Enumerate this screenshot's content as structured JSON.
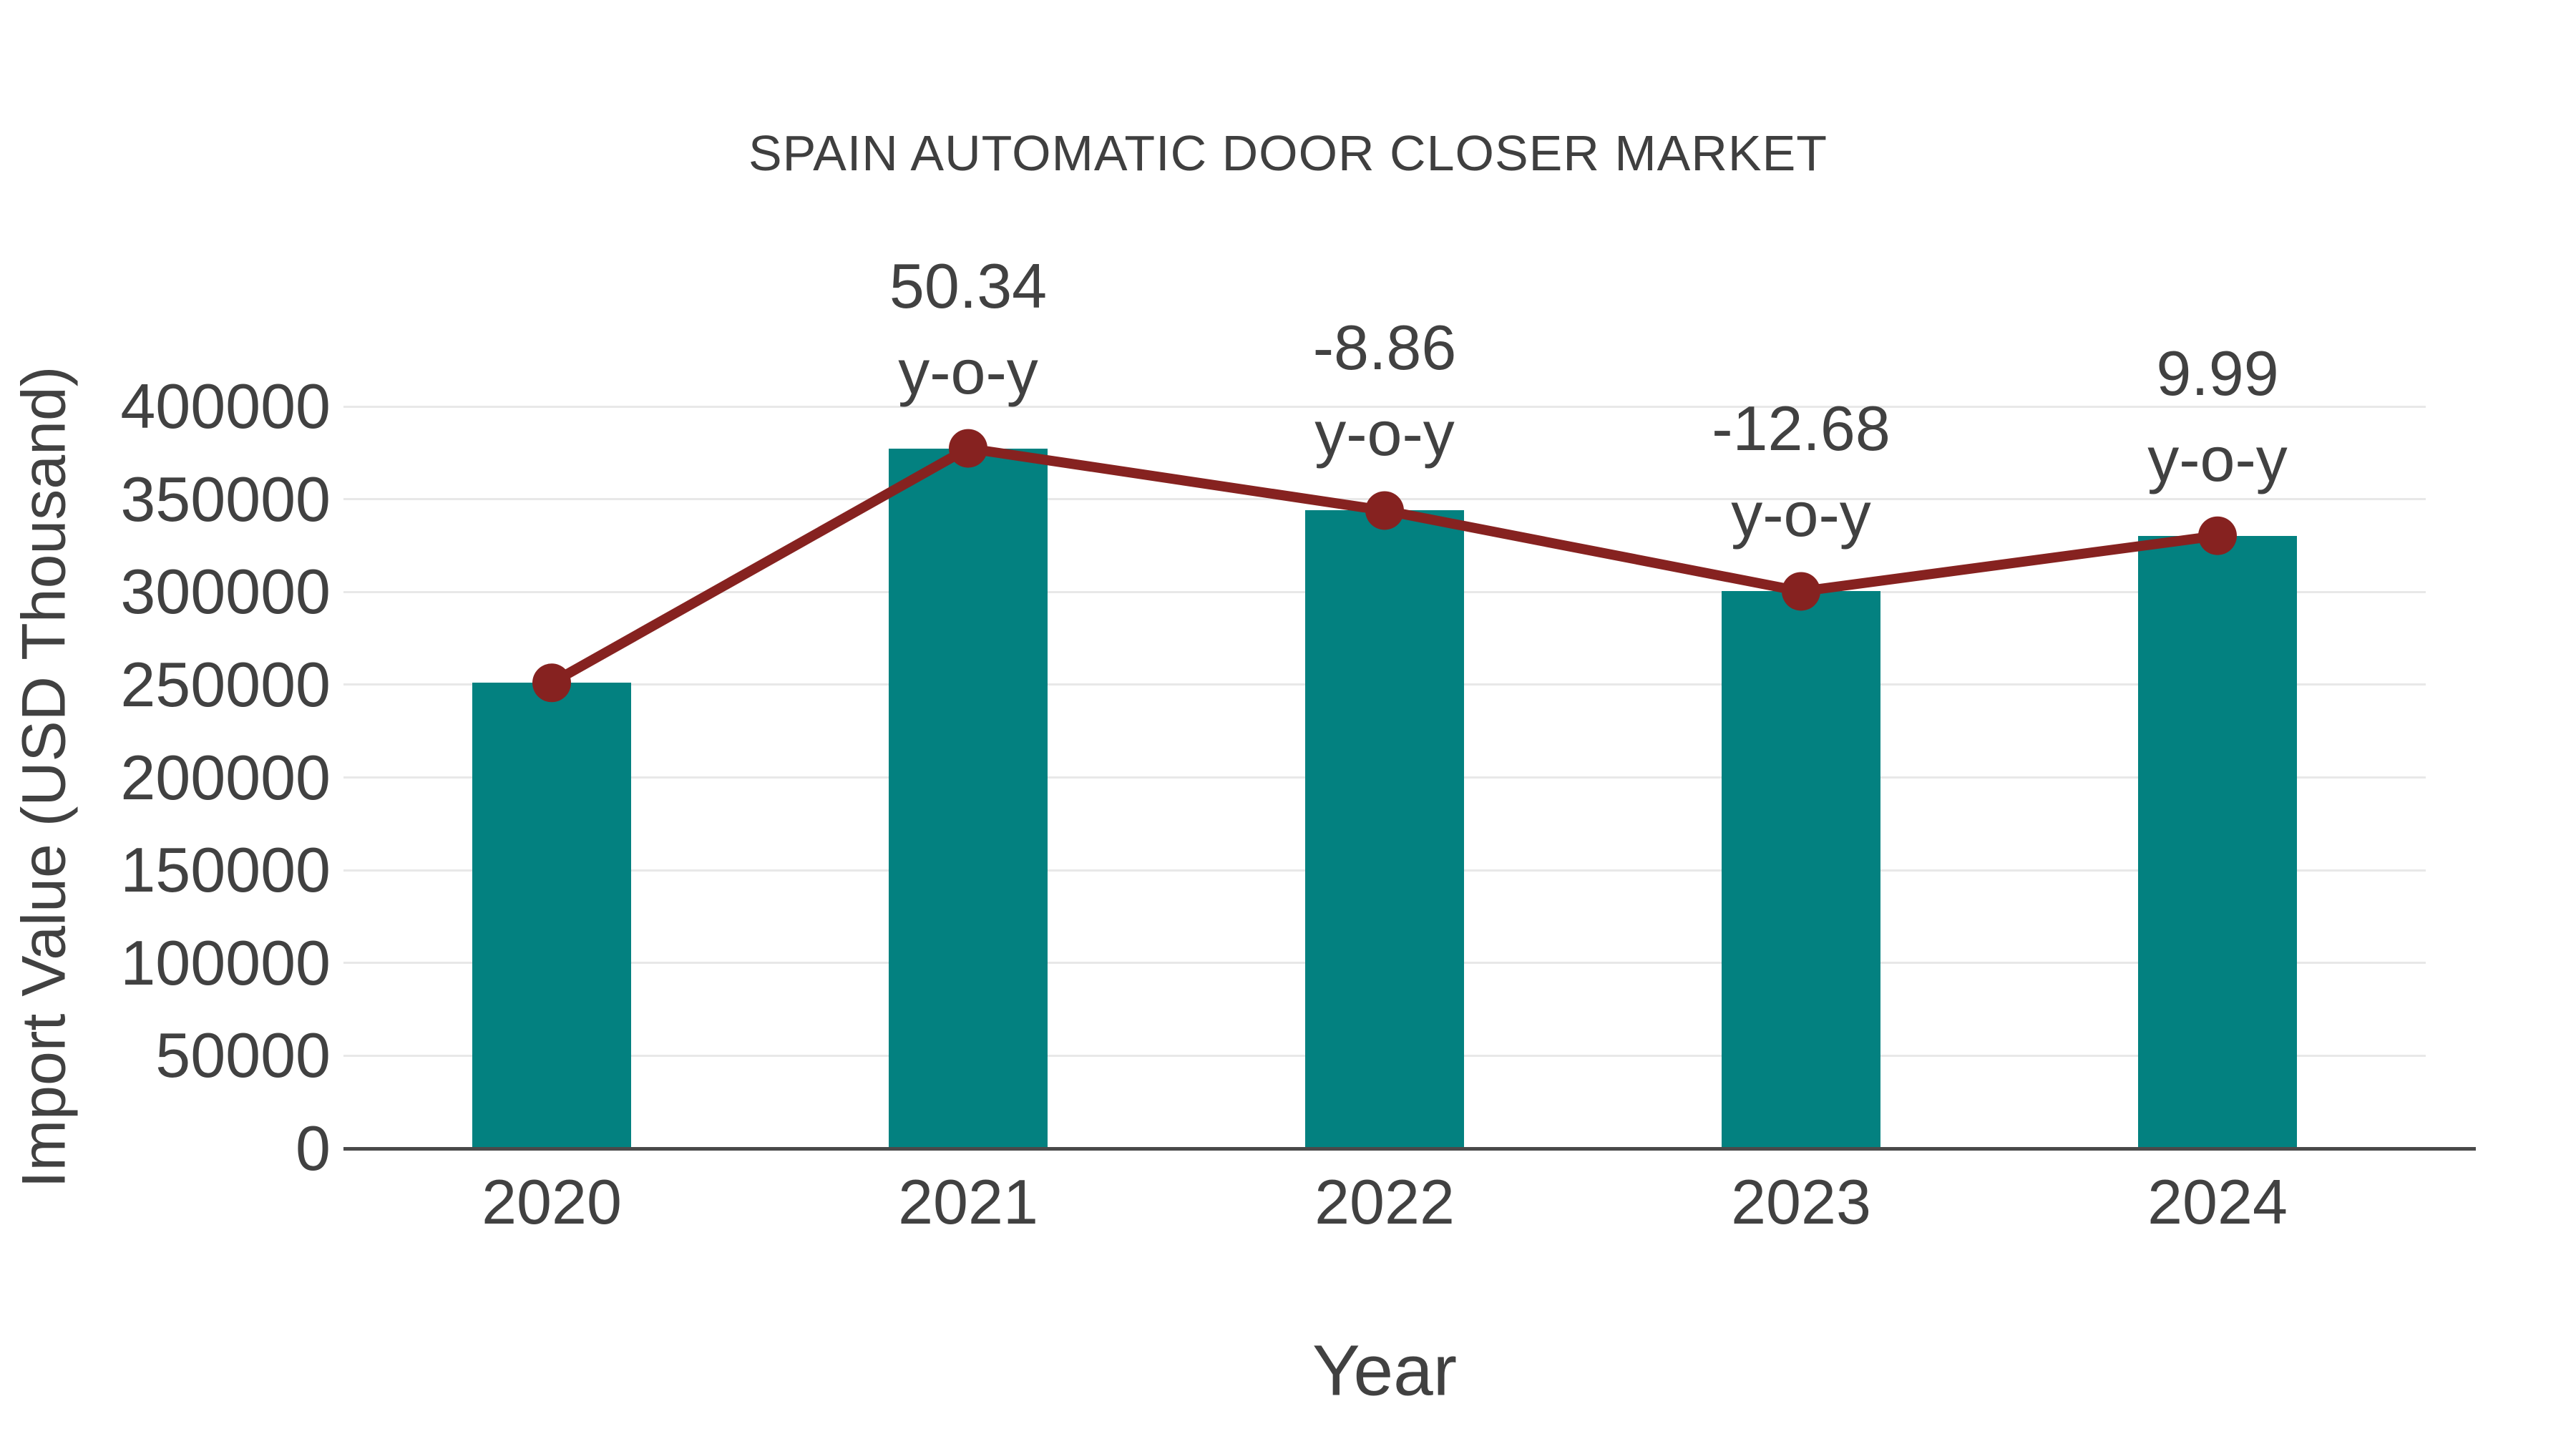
{
  "title": "SPAIN AUTOMATIC DOOR CLOSER MARKET",
  "chart_data": {
    "type": "bar",
    "title": "SPAIN AUTOMATIC DOOR CLOSER MARKET",
    "xlabel": "Year",
    "ylabel": "Import Value (USD Thousand)",
    "categories": [
      "2020",
      "2021",
      "2022",
      "2023",
      "2024"
    ],
    "series": [
      {
        "name": "Import Value (USD Thousand)",
        "type": "bar",
        "values": [
          251000,
          377400,
          343900,
          300300,
          330300
        ]
      },
      {
        "name": "Import Value trend",
        "type": "line",
        "values": [
          251000,
          377400,
          343900,
          300300,
          330300
        ]
      }
    ],
    "annotations": [
      {
        "category": "2021",
        "value": "50.34",
        "suffix": "y-o-y"
      },
      {
        "category": "2022",
        "value": "-8.86",
        "suffix": "y-o-y"
      },
      {
        "category": "2023",
        "value": "-12.68",
        "suffix": "y-o-y"
      },
      {
        "category": "2024",
        "value": "9.99",
        "suffix": "y-o-y"
      }
    ],
    "ylim": [
      0,
      400000
    ],
    "yticks": [
      0,
      50000,
      100000,
      150000,
      200000,
      250000,
      300000,
      350000,
      400000
    ],
    "grid": "horizontal",
    "legend_position": "none",
    "colors": {
      "bar": "#038180",
      "line": "#862220",
      "grid": "#e8e8e8",
      "axis": "#4a4a4a",
      "text": "#414141"
    }
  }
}
